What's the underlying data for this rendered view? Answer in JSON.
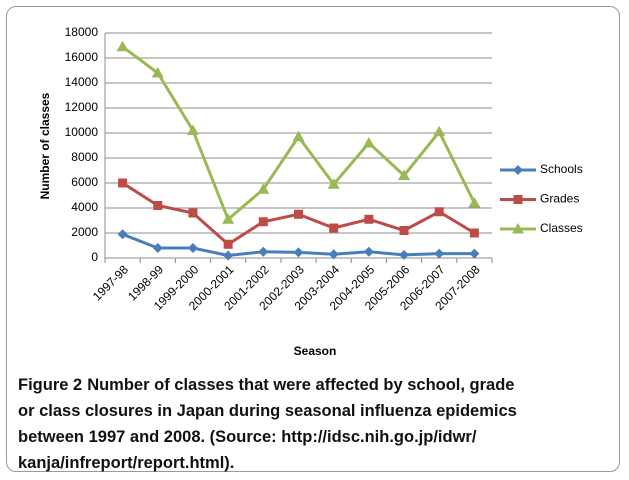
{
  "chart_data": {
    "type": "line",
    "y_label": "Number of classes",
    "x_label": "Season",
    "categories": [
      "1997-98",
      "1998-99",
      "1999-2000",
      "2000-2001",
      "2001-2002",
      "2002-2003",
      "2003-2004",
      "2004-2005",
      "2005-2006",
      "2006-2007",
      "2007-2008"
    ],
    "series": [
      {
        "name": "Schools",
        "color": "#4a7ebb",
        "marker": "diamond",
        "values": [
          1900,
          800,
          800,
          200,
          500,
          450,
          300,
          500,
          250,
          350,
          350
        ]
      },
      {
        "name": "Grades",
        "color": "#be4b48",
        "marker": "square",
        "values": [
          6000,
          4200,
          3600,
          1100,
          2900,
          3500,
          2400,
          3100,
          2200,
          3700,
          2000
        ]
      },
      {
        "name": "Classes",
        "color": "#98b954",
        "marker": "triangle",
        "values": [
          16900,
          14800,
          10200,
          3100,
          5500,
          9700,
          5900,
          9200,
          6600,
          10100,
          4400
        ]
      }
    ],
    "ylim": [
      0,
      18000
    ],
    "yticks": [
      0,
      2000,
      4000,
      6000,
      8000,
      10000,
      12000,
      14000,
      16000,
      18000
    ],
    "grid": true,
    "legend": "right",
    "caption_label": "Figure 2",
    "caption_lines": [
      "Number of classes that were affected by school, grade",
      "or class closures in Japan during seasonal influenza epidemics",
      "between 1997 and 2008. (Source: http://idsc.nih.go.jp/idwr/",
      "kanja/infreport/report.html)."
    ]
  }
}
